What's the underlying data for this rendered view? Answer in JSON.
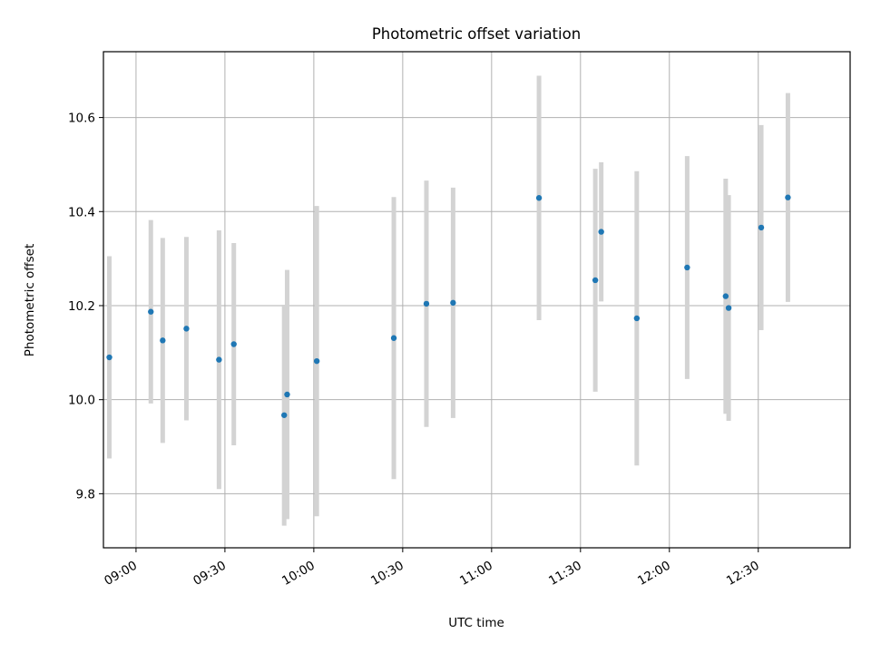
{
  "chart_data": {
    "type": "scatter",
    "title": "Photometric offset variation",
    "xlabel": "UTC time",
    "ylabel": "Photometric offset",
    "x_ticks": [
      "09:00",
      "09:30",
      "10:00",
      "10:30",
      "11:00",
      "11:30",
      "12:00",
      "12:30"
    ],
    "y_ticks": [
      "9.8",
      "10.0",
      "10.2",
      "10.4",
      "10.6"
    ],
    "xlim": [
      "08:49",
      "13:01"
    ],
    "ylim": [
      9.685,
      10.74
    ],
    "grid": true,
    "marker_color": "#1f77b4",
    "errorbar_color": "#d3d3d3",
    "points": [
      {
        "t": "08:51",
        "y": 10.09,
        "err": 0.215
      },
      {
        "t": "09:05",
        "y": 10.187,
        "err": 0.195
      },
      {
        "t": "09:09",
        "y": 10.126,
        "err": 0.218
      },
      {
        "t": "09:17",
        "y": 10.151,
        "err": 0.195
      },
      {
        "t": "09:28",
        "y": 10.085,
        "err": 0.275
      },
      {
        "t": "09:33",
        "y": 10.118,
        "err": 0.215
      },
      {
        "t": "09:50",
        "y": 9.967,
        "err": 0.235
      },
      {
        "t": "09:51",
        "y": 10.011,
        "err": 0.265
      },
      {
        "t": "10:01",
        "y": 10.082,
        "err": 0.33
      },
      {
        "t": "10:27",
        "y": 10.131,
        "err": 0.3
      },
      {
        "t": "10:38",
        "y": 10.204,
        "err": 0.262
      },
      {
        "t": "10:47",
        "y": 10.206,
        "err": 0.245
      },
      {
        "t": "11:16",
        "y": 10.429,
        "err": 0.26
      },
      {
        "t": "11:35",
        "y": 10.254,
        "err": 0.237
      },
      {
        "t": "11:37",
        "y": 10.357,
        "err": 0.148
      },
      {
        "t": "11:49",
        "y": 10.173,
        "err": 0.313
      },
      {
        "t": "12:06",
        "y": 10.281,
        "err": 0.237
      },
      {
        "t": "12:19",
        "y": 10.22,
        "err": 0.25
      },
      {
        "t": "12:20",
        "y": 10.195,
        "err": 0.24
      },
      {
        "t": "12:31",
        "y": 10.366,
        "err": 0.218
      },
      {
        "t": "12:40",
        "y": 10.43,
        "err": 0.222
      }
    ]
  }
}
